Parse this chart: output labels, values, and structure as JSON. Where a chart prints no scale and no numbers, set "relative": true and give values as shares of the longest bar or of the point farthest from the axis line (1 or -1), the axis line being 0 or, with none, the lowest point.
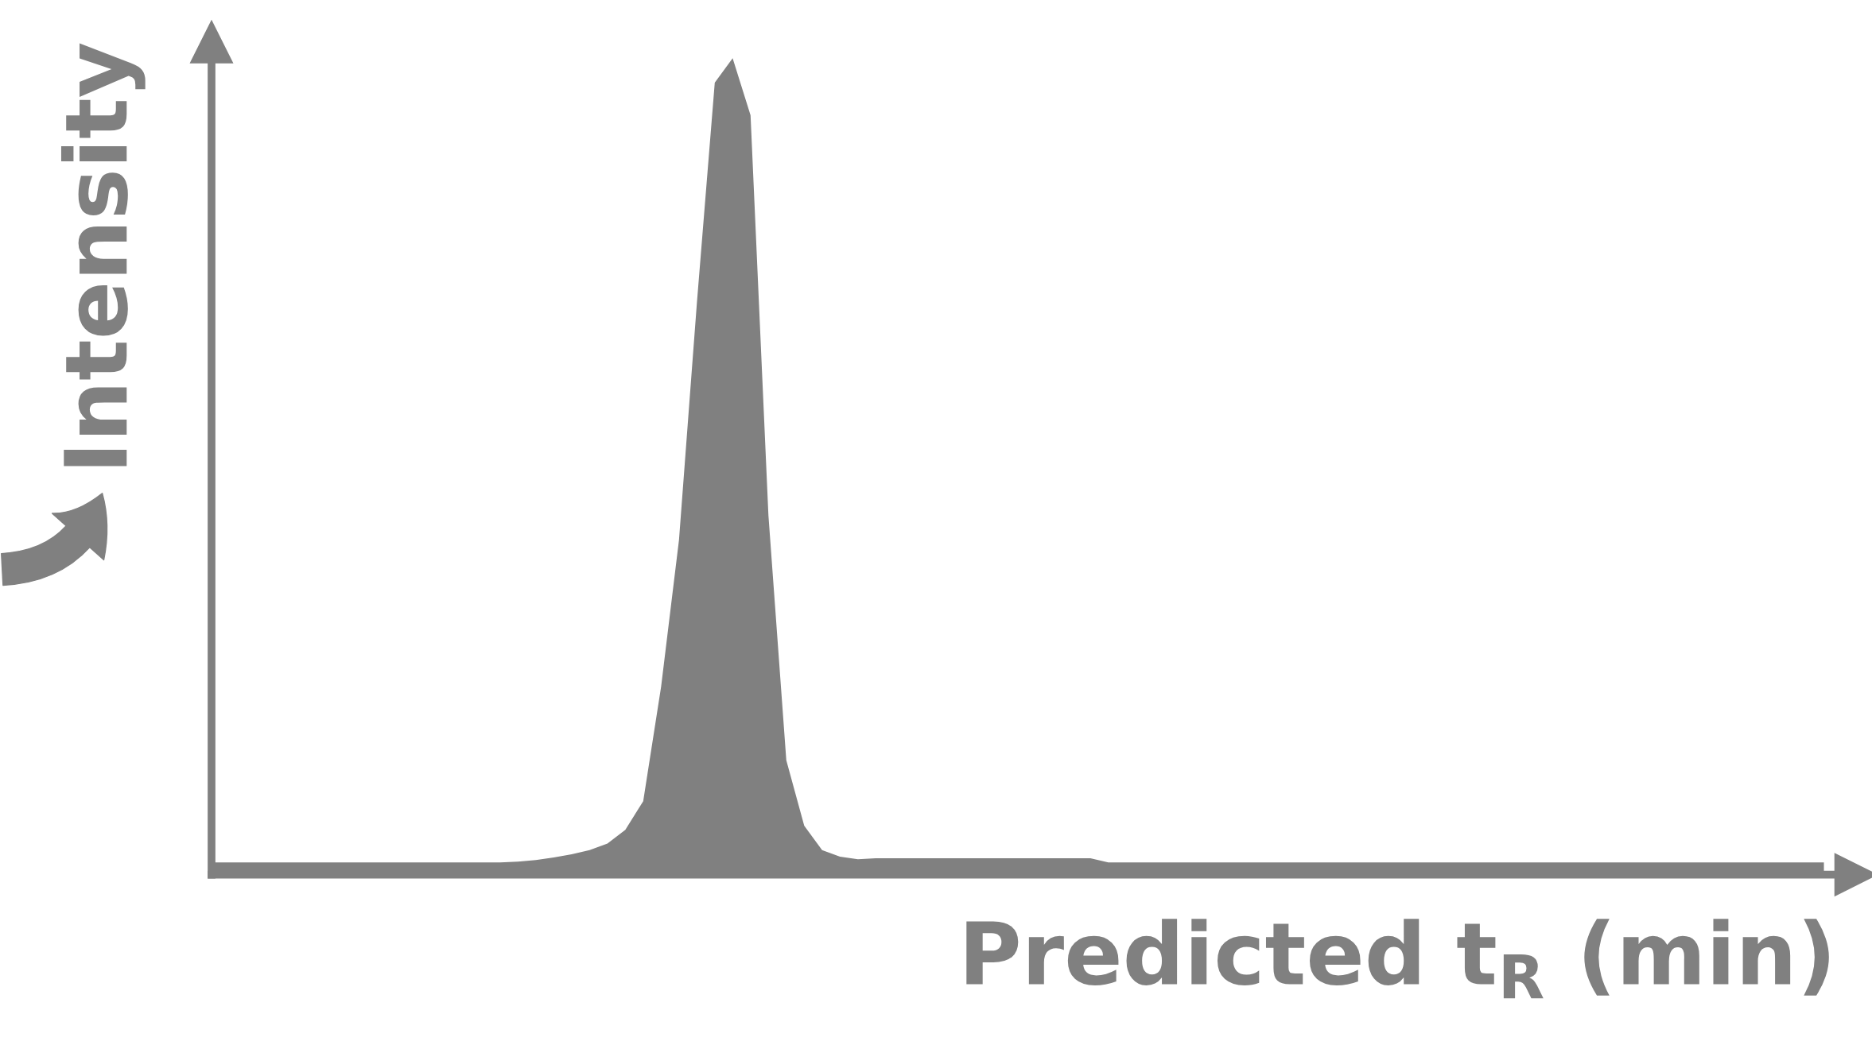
{
  "chart_data": {
    "type": "area",
    "relative": true,
    "xlabel": "Predicted t$_{R}$ (min)",
    "ylabel": "Intensity",
    "tick_labels": false,
    "categories": [
      null,
      null,
      null,
      null,
      null,
      null,
      null,
      null,
      null,
      null,
      null,
      null,
      null,
      null,
      null,
      null,
      null,
      null,
      null,
      null,
      null,
      null,
      null,
      null,
      null,
      null,
      null,
      null,
      null,
      null,
      null,
      null,
      null,
      null,
      null,
      null,
      null,
      null,
      null,
      null,
      null,
      null,
      null,
      null,
      null,
      null,
      null,
      null,
      null,
      null,
      null,
      null,
      null,
      null,
      null,
      null,
      null,
      null,
      null,
      null,
      null,
      null,
      null,
      null,
      null,
      null,
      null,
      null,
      null,
      null,
      null,
      null,
      null,
      null,
      null,
      null,
      null,
      null,
      null,
      null,
      null,
      null,
      null,
      null,
      null,
      null,
      null,
      null,
      null,
      null,
      null
    ],
    "series": [
      {
        "color": "#808080",
        "values": [
          0.015,
          0.015,
          0.015,
          0.015,
          0.015,
          0.015,
          0.015,
          0.015,
          0.015,
          0.015,
          0.015,
          0.015,
          0.015,
          0.015,
          0.015,
          0.015,
          0.015,
          0.016,
          0.018,
          0.021,
          0.025,
          0.03,
          0.038,
          0.055,
          0.09,
          0.23,
          0.41,
          0.7,
          0.97,
          1.0,
          0.93,
          0.44,
          0.14,
          0.06,
          0.03,
          0.022,
          0.019,
          0.02,
          0.02,
          0.02,
          0.02,
          0.02,
          0.02,
          0.02,
          0.02,
          0.02,
          0.02,
          0.02,
          0.02,
          0.02,
          0.015,
          0.015,
          0.015,
          0.015,
          0.015,
          0.015,
          0.015,
          0.015,
          0.015,
          0.015,
          0.015,
          0.015,
          0.015,
          0.015,
          0.015,
          0.015,
          0.015,
          0.015,
          0.015,
          0.015,
          0.015,
          0.015,
          0.015,
          0.015,
          0.015,
          0.015,
          0.015,
          0.015,
          0.015,
          0.015,
          0.015,
          0.015,
          0.015,
          0.015,
          0.015,
          0.015,
          0.015,
          0.015,
          0.015,
          0.015,
          0.015
        ]
      }
    ]
  }
}
